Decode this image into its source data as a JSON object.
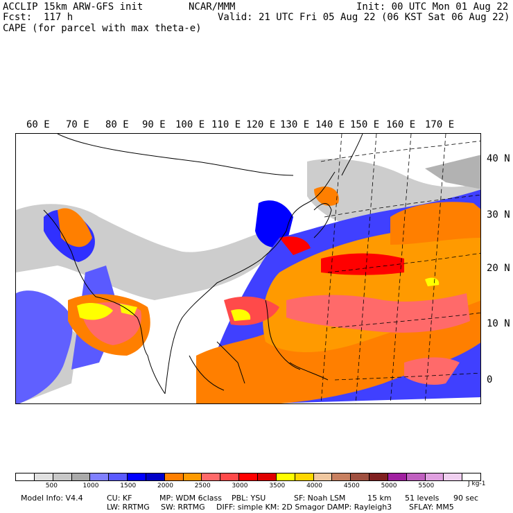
{
  "header": {
    "model_line": "ACCLIP 15km ARW-GFS init",
    "forecast_line": "Fcst:  117 h",
    "field_line": "CAPE (for parcel with max theta-e)",
    "org": "NCAR/MMM",
    "init": "Init: 00 UTC Mon 01 Aug 22",
    "valid": "Valid: 21 UTC Fri 05 Aug 22 (06 KST Sat 06 Aug 22)"
  },
  "map": {
    "lon_labels": [
      "60 E",
      "70 E",
      "80 E",
      "90 E",
      "100 E",
      "110 E",
      "120 E",
      "130 E",
      "140 E",
      "150 E",
      "160 E",
      "170 E"
    ],
    "lat_labels": [
      "40 N",
      "30 N",
      "20 N",
      "10 N",
      "0"
    ]
  },
  "colorbar": {
    "colors": [
      "#ffffff",
      "#e1e1e1",
      "#c8c8c8",
      "#aaaaaa",
      "#8080ff",
      "#5a5aff",
      "#0000ff",
      "#0000c8",
      "#ff7f00",
      "#ff9a00",
      "#ff6a6a",
      "#ff4a4a",
      "#ff0000",
      "#e00000",
      "#ffff00",
      "#ffd700",
      "#f0c8a0",
      "#c88060",
      "#a05040",
      "#802020",
      "#a020a0",
      "#c060c0",
      "#e0a0e0",
      "#f0d0f0",
      "#ffffff"
    ],
    "tick_labels": [
      "500",
      "1000",
      "1500",
      "2000",
      "2500",
      "3000",
      "3500",
      "4000",
      "4500",
      "5000",
      "5500"
    ],
    "unit": "J kg-1"
  },
  "footer": {
    "line1": {
      "model_info": "Model Info: V4.4",
      "cu": "CU: KF",
      "mp": "MP: WDM 6class",
      "pbl": "PBL: YSU",
      "sf": "SF: Noah LSM",
      "dx": "15 km",
      "levels": "51 levels",
      "dt": "90 sec"
    },
    "line2": {
      "lw": "LW: RRTMG",
      "sw": "SW: RRTMG",
      "diff": "DIFF: simple KM: 2D Smagor DAMP: Rayleigh3",
      "sflay": "SFLAY: MM5"
    }
  }
}
